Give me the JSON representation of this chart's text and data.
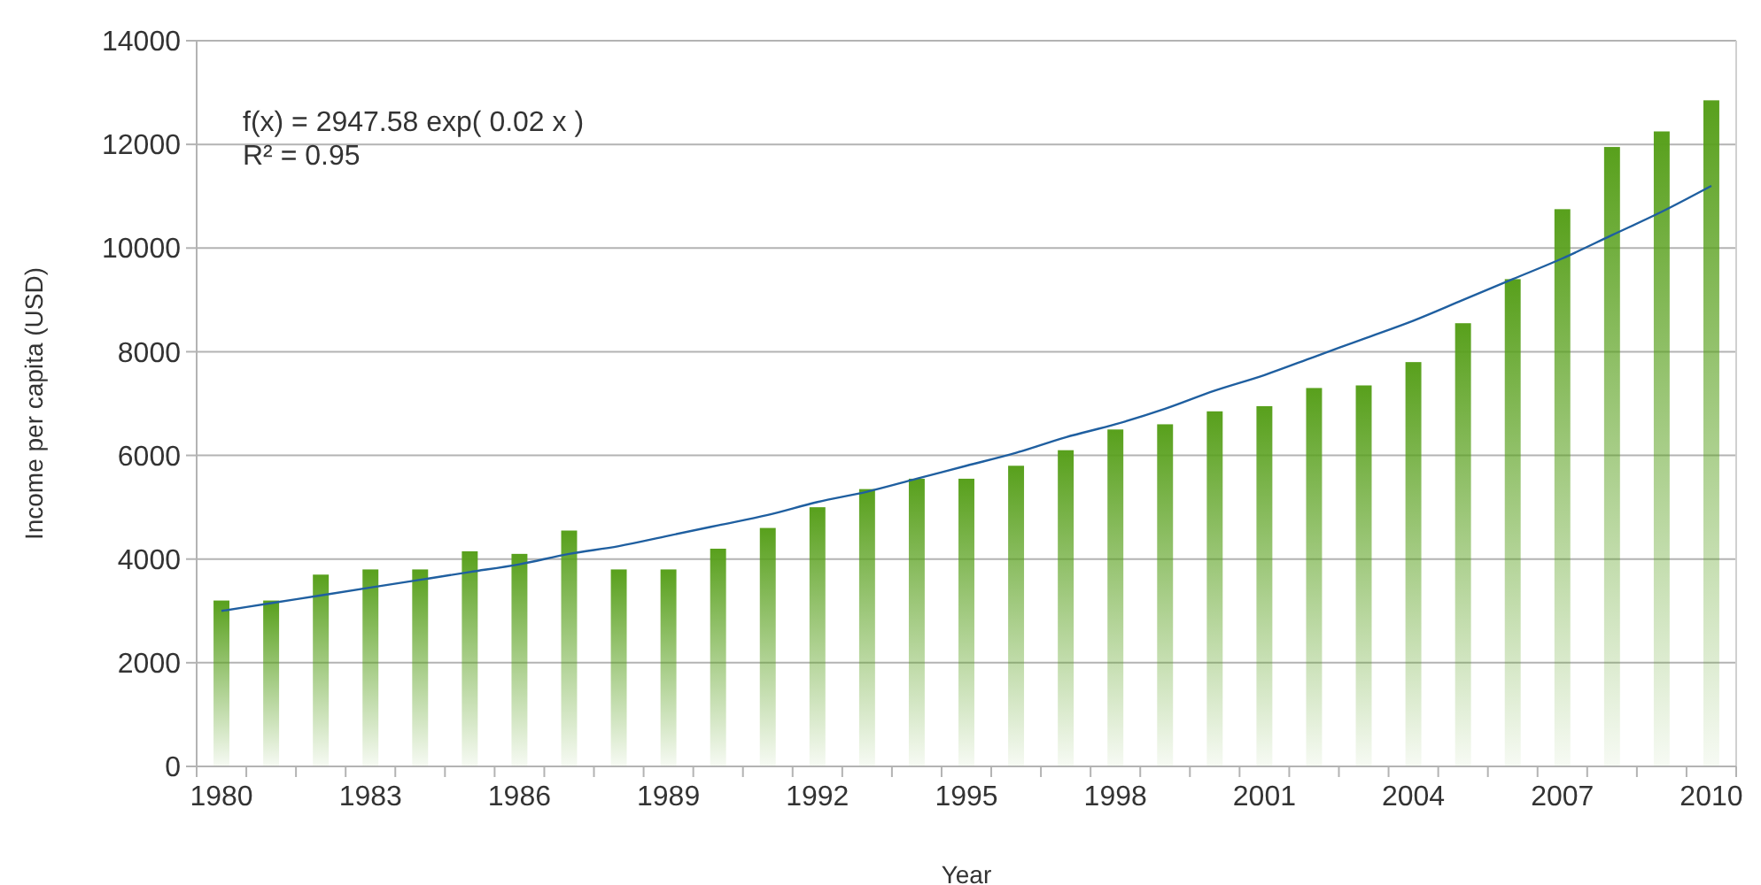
{
  "chart_data": {
    "type": "bar",
    "xlabel": "Year",
    "ylabel": "Income per capita (USD)",
    "categories": [
      "1980",
      null,
      null,
      "1983",
      null,
      null,
      "1986",
      null,
      null,
      "1989",
      null,
      null,
      "1992",
      null,
      null,
      "1995",
      null,
      null,
      "1998",
      null,
      null,
      "2001",
      null,
      null,
      "2004",
      null,
      null,
      "2007",
      null,
      null,
      "2010"
    ],
    "series": [
      {
        "color": "#58a01c",
        "values": [
          3200,
          3200,
          3700,
          3800,
          3800,
          4150,
          4100,
          4550,
          3800,
          3800,
          4200,
          4600,
          5000,
          5350,
          5550,
          5550,
          5800,
          6100,
          6500,
          6600,
          6850,
          6950,
          7300,
          7350,
          7800,
          8550,
          9400,
          10750,
          11950,
          12250,
          12850
        ]
      },
      {
        "type": "line",
        "color": "#1f5fa0",
        "values": [
          3000,
          3150,
          3300,
          3450,
          3600,
          3750,
          3900,
          4100,
          4250,
          4450,
          4650,
          4850,
          5100,
          5300,
          5550,
          5800,
          6050,
          6350,
          6600,
          6900,
          7250,
          7550,
          7900,
          8250,
          8600,
          9000,
          9400,
          9800,
          10250,
          10700,
          11200
        ]
      }
    ],
    "ylim": [
      0,
      14000
    ],
    "yticks": [
      0,
      2000,
      4000,
      6000,
      8000,
      10000,
      12000,
      14000
    ],
    "grid": "y",
    "annotations": [
      "f(x) = 2947.58 exp( 0.02 x )",
      "R² = 0.95"
    ]
  }
}
